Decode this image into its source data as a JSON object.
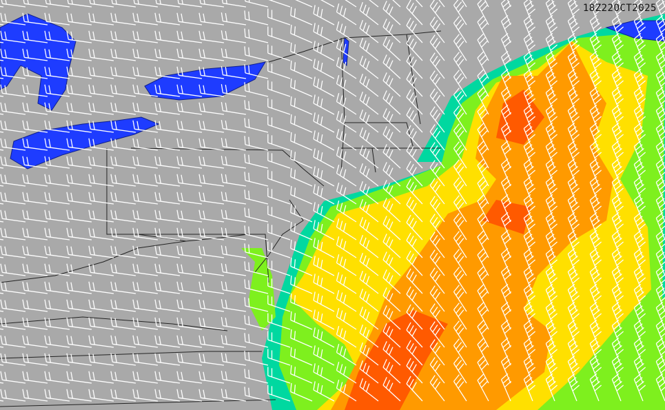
{
  "map": {
    "valid_time": "18Z22OCT2025",
    "colors": {
      "land": "#a9a9a9",
      "lakes": "#1e3cff",
      "barbs": "#ffffff",
      "borders": "#222222",
      "field_low": "#00d8a0",
      "field_green": "#7ef01e",
      "field_yellow": "#ffe000",
      "field_orange": "#ff9a00",
      "field_red": "#ff5a00"
    }
  }
}
